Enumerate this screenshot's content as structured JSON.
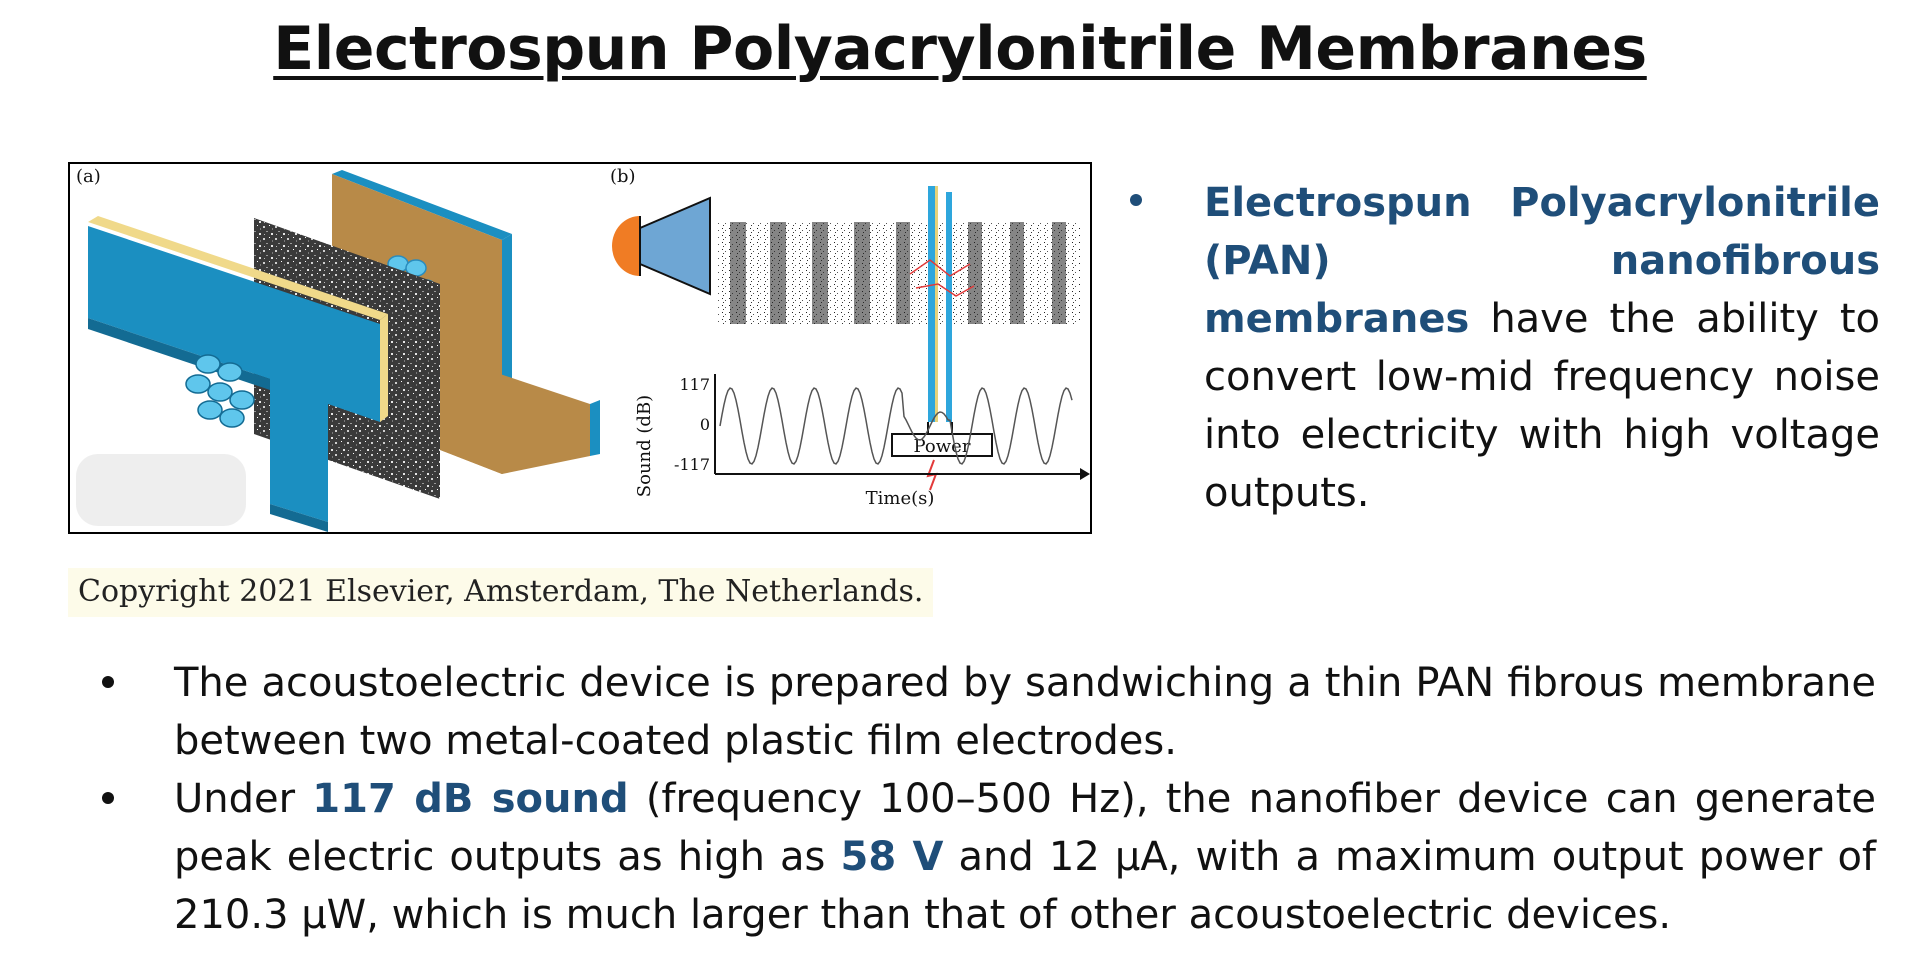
{
  "title": "Electrospun Polyacrylonitrile Membranes",
  "figure": {
    "panel_a_label": "(a)",
    "panel_b_label": "(b)",
    "power_label": "Power",
    "y_axis_label": "Sound (dB)",
    "y_tick_top": "117",
    "y_tick_mid": "0",
    "y_tick_bottom": "-117",
    "x_axis_label": "Time(s)",
    "colors": {
      "electrode_blue": "#1b8fc1",
      "membrane_gold": "#b88a48",
      "speaker_orange": "#f07c24"
    }
  },
  "copyright": "Copyright 2021 Elsevier, Amsterdam, The Netherlands.",
  "side_bullet": {
    "highlight": "Electrospun Polyacrylonitrile (PAN) nanofibrous membranes",
    "text": " have the ability to convert low-mid frequency noise into electricity with high voltage outputs."
  },
  "bullets": [
    {
      "text": "The acoustoelectric device is prepared by sandwiching a thin PAN fibrous membrane between two metal-coated plastic film electrodes."
    },
    {
      "part1": "Under ",
      "hl1": "117 dB sound",
      "part2": " (frequency 100–500 Hz), the nanofiber device can generate peak electric outputs as high as ",
      "hl2": "58 V",
      "part3": " and 12 μA, with a maximum output power of 210.3 μW, which is much larger than that of other acoustoelectric devices."
    }
  ],
  "accent_color": "#1f4e79"
}
